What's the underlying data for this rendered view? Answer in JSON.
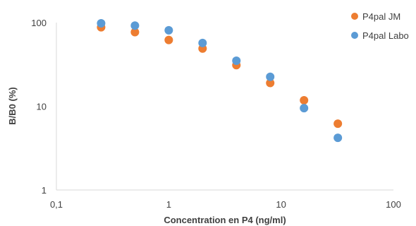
{
  "chart_data": {
    "type": "scatter",
    "title": "",
    "xlabel": "Concentration en P4 (ng/ml)",
    "ylabel": "B/B0 (%)",
    "x_scale": "log",
    "y_scale": "log",
    "xlim": [
      0.1,
      100
    ],
    "ylim": [
      1,
      100
    ],
    "x_ticks": [
      {
        "value": 0.1,
        "label": "0,1"
      },
      {
        "value": 1,
        "label": "1"
      },
      {
        "value": 10,
        "label": "10"
      },
      {
        "value": 100,
        "label": "100"
      }
    ],
    "y_ticks": [
      {
        "value": 1,
        "label": "1"
      },
      {
        "value": 10,
        "label": "10"
      },
      {
        "value": 100,
        "label": "100"
      }
    ],
    "grid": false,
    "legend_position": "top-right",
    "series": [
      {
        "name": "P4pal JM",
        "color": "#ED7D31",
        "points": [
          {
            "x": 0.25,
            "y": 88
          },
          {
            "x": 0.5,
            "y": 77
          },
          {
            "x": 1,
            "y": 62
          },
          {
            "x": 2,
            "y": 49
          },
          {
            "x": 4,
            "y": 31
          },
          {
            "x": 8,
            "y": 19
          },
          {
            "x": 16,
            "y": 11.8
          },
          {
            "x": 32,
            "y": 6.2
          }
        ]
      },
      {
        "name": "P4pal Labo",
        "color": "#5B9BD5",
        "points": [
          {
            "x": 0.25,
            "y": 98
          },
          {
            "x": 0.5,
            "y": 92
          },
          {
            "x": 1,
            "y": 81
          },
          {
            "x": 2,
            "y": 57
          },
          {
            "x": 4,
            "y": 35
          },
          {
            "x": 8,
            "y": 22.5
          },
          {
            "x": 16,
            "y": 9.5
          },
          {
            "x": 32,
            "y": 4.2
          }
        ]
      }
    ]
  }
}
